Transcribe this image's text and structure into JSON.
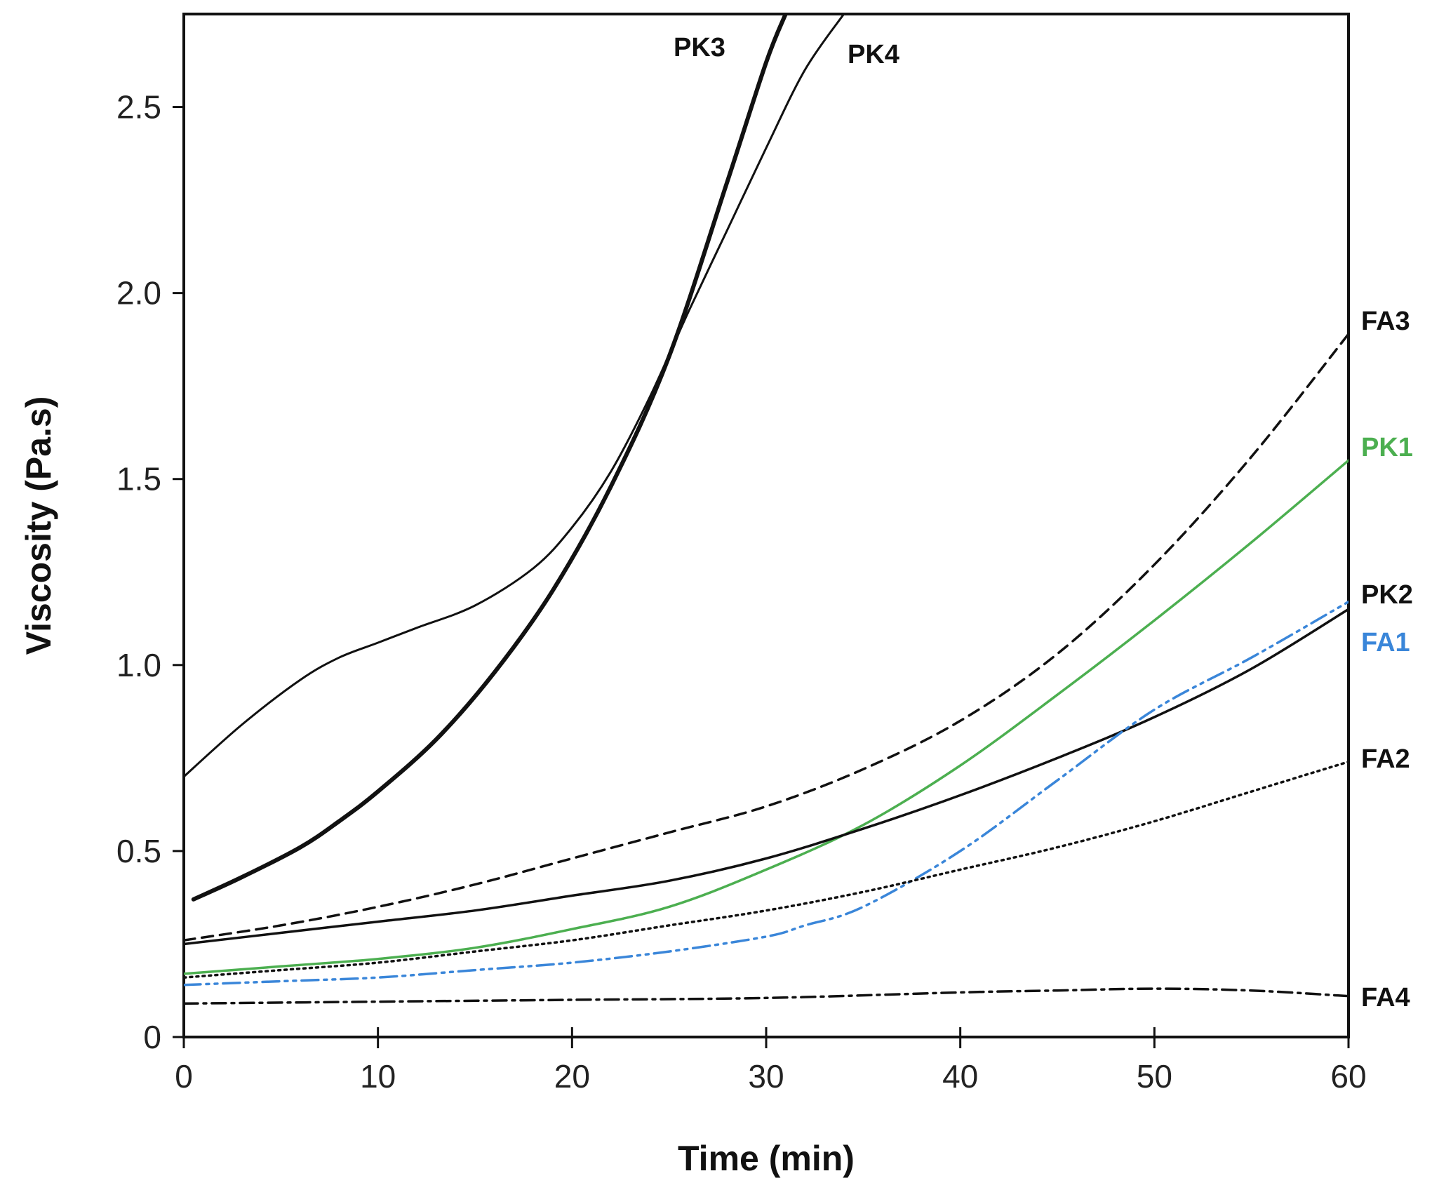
{
  "chart_data": {
    "type": "line",
    "xlabel": "Time (min)",
    "ylabel": "Viscosity (Pa.s)",
    "xlim": [
      0,
      60
    ],
    "ylim": [
      0,
      2.75
    ],
    "x_ticks": [
      0,
      10,
      20,
      30,
      40,
      50,
      60
    ],
    "y_ticks": [
      0,
      0.5,
      1.0,
      1.5,
      2.0,
      2.5
    ],
    "x_tick_labels": [
      "0",
      "10",
      "20",
      "30",
      "40",
      "50",
      "60"
    ],
    "y_tick_labels": [
      "0",
      "0.5",
      "1.0",
      "1.5",
      "2.0",
      "2.5"
    ],
    "grid": false,
    "legend": "inline labels",
    "series": [
      {
        "name": "PK3",
        "color": "#111111",
        "style": "solid-thick",
        "x": [
          0.5,
          3,
          6,
          8,
          10,
          13,
          16,
          19,
          22,
          25,
          28,
          30,
          31
        ],
        "y": [
          0.37,
          0.43,
          0.51,
          0.58,
          0.66,
          0.8,
          0.98,
          1.2,
          1.48,
          1.83,
          2.3,
          2.62,
          2.75
        ]
      },
      {
        "name": "PK4",
        "color": "#111111",
        "style": "solid-thin",
        "x": [
          0,
          3,
          6,
          8,
          10,
          12,
          15,
          18,
          20,
          22,
          24,
          26,
          28,
          30,
          32,
          34
        ],
        "y": [
          0.7,
          0.84,
          0.96,
          1.02,
          1.06,
          1.1,
          1.16,
          1.26,
          1.37,
          1.52,
          1.72,
          1.95,
          2.17,
          2.39,
          2.6,
          2.75
        ]
      },
      {
        "name": "FA3",
        "color": "#111111",
        "style": "dashed",
        "x": [
          0,
          5,
          10,
          15,
          20,
          25,
          30,
          35,
          40,
          45,
          50,
          55,
          60
        ],
        "y": [
          0.26,
          0.3,
          0.35,
          0.41,
          0.48,
          0.55,
          0.62,
          0.72,
          0.85,
          1.03,
          1.27,
          1.56,
          1.89
        ]
      },
      {
        "name": "PK1",
        "color": "#4caf50",
        "style": "solid",
        "x": [
          0,
          5,
          10,
          15,
          20,
          25,
          30,
          35,
          40,
          45,
          50,
          55,
          60
        ],
        "y": [
          0.17,
          0.19,
          0.21,
          0.24,
          0.29,
          0.35,
          0.45,
          0.57,
          0.73,
          0.92,
          1.12,
          1.33,
          1.55
        ]
      },
      {
        "name": "PK2",
        "color": "#111111",
        "style": "solid",
        "x": [
          0,
          5,
          10,
          15,
          20,
          25,
          30,
          35,
          40,
          45,
          50,
          55,
          60
        ],
        "y": [
          0.25,
          0.28,
          0.31,
          0.34,
          0.38,
          0.42,
          0.48,
          0.56,
          0.65,
          0.75,
          0.86,
          0.99,
          1.15
        ]
      },
      {
        "name": "FA1",
        "color": "#3a86d9",
        "style": "dash-dot-dot",
        "x": [
          0,
          5,
          10,
          15,
          20,
          25,
          30,
          32,
          35,
          40,
          45,
          50,
          55,
          60
        ],
        "y": [
          0.14,
          0.15,
          0.16,
          0.18,
          0.2,
          0.23,
          0.27,
          0.3,
          0.35,
          0.5,
          0.69,
          0.88,
          1.02,
          1.17
        ]
      },
      {
        "name": "FA2",
        "color": "#111111",
        "style": "dotted",
        "x": [
          0,
          5,
          10,
          15,
          20,
          25,
          30,
          35,
          40,
          45,
          50,
          55,
          60
        ],
        "y": [
          0.16,
          0.18,
          0.2,
          0.23,
          0.26,
          0.3,
          0.34,
          0.39,
          0.45,
          0.51,
          0.58,
          0.66,
          0.74
        ]
      },
      {
        "name": "FA4",
        "color": "#111111",
        "style": "dash-dot",
        "x": [
          0,
          10,
          20,
          30,
          40,
          45,
          50,
          55,
          60
        ],
        "y": [
          0.09,
          0.095,
          0.1,
          0.105,
          0.12,
          0.125,
          0.13,
          0.125,
          0.11
        ]
      }
    ]
  }
}
